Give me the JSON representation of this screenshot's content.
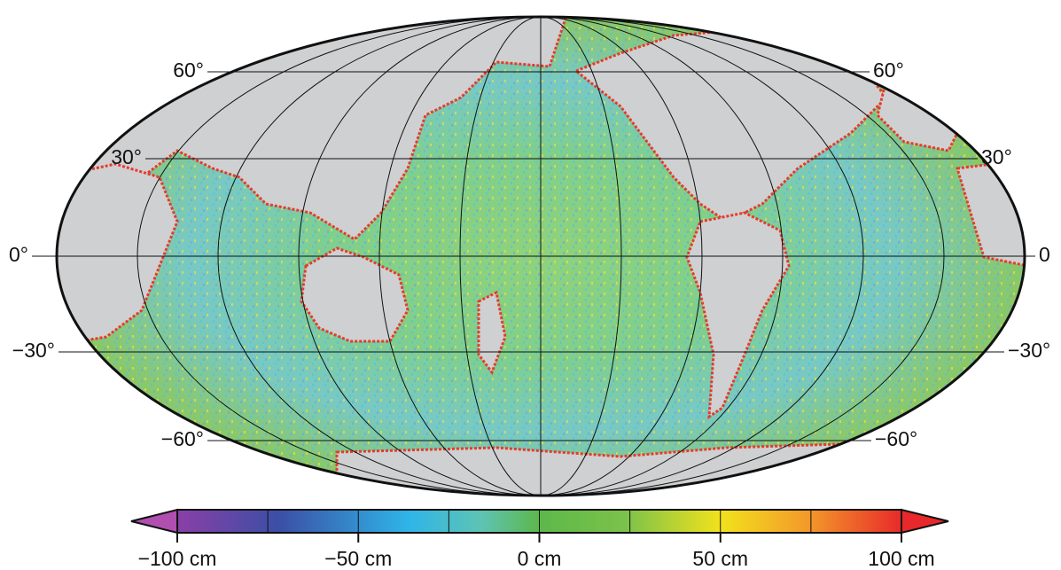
{
  "map": {
    "latitude_labels_left": [
      "60°",
      "30°",
      "0°",
      "−30°",
      "−60°"
    ],
    "latitude_labels_right": [
      "60°",
      "30°",
      "0",
      "−30°",
      "−60°"
    ],
    "colorbar": {
      "labels": [
        "−100 cm",
        "−50 cm",
        "0 cm",
        "50 cm",
        "100 cm"
      ]
    }
  }
}
